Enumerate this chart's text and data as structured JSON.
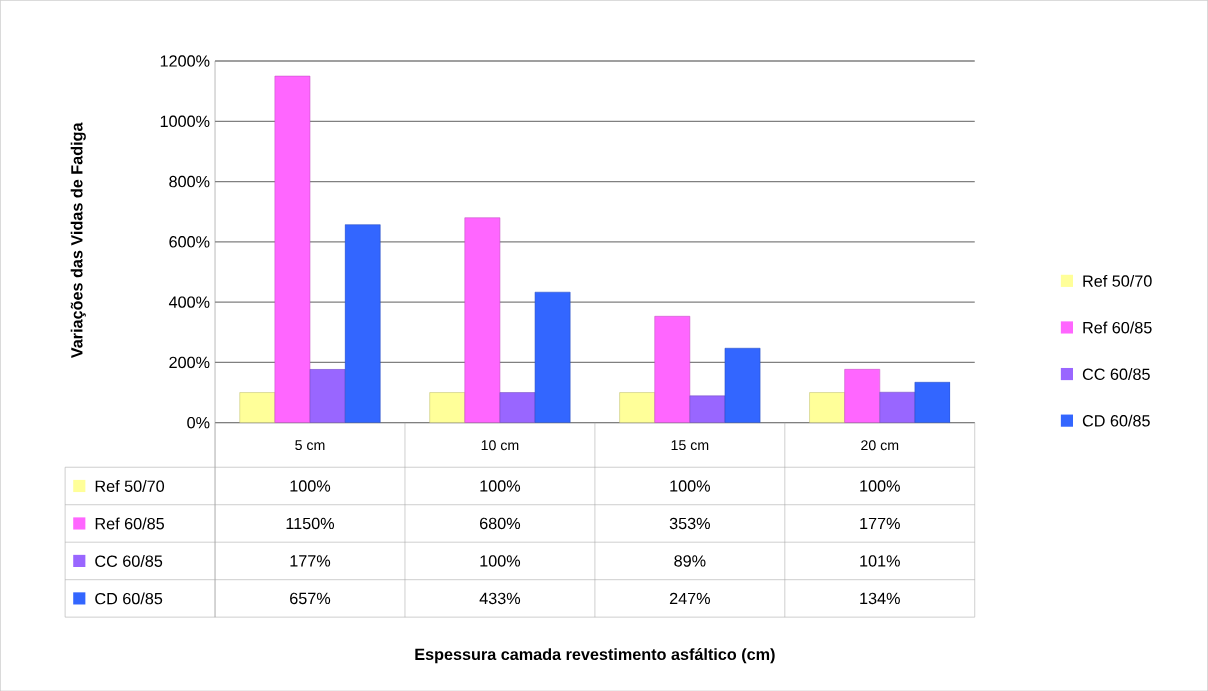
{
  "chart_data": {
    "type": "bar",
    "annotations": [
      "Espessura camada revestimento asfáltico (cm)"
    ],
    "ylabel": "Variações das Vidas de Fadiga",
    "categories": [
      "5 cm",
      "10 cm",
      "15 cm",
      "20 cm"
    ],
    "series": [
      {
        "name": "Ref 50/70",
        "color": "#ffff99",
        "values": [
          100,
          100,
          100,
          100
        ],
        "value_labels": [
          "100%",
          "100%",
          "100%",
          "100%"
        ]
      },
      {
        "name": "Ref 60/85",
        "color": "#ff66ff",
        "values": [
          1150,
          680,
          353,
          177
        ],
        "value_labels": [
          "1150%",
          "680%",
          "353%",
          "177%"
        ]
      },
      {
        "name": "CC 60/85",
        "color": "#9966ff",
        "values": [
          177,
          100,
          89,
          101
        ],
        "value_labels": [
          "177%",
          "100%",
          "89%",
          "101%"
        ]
      },
      {
        "name": "CD 60/85",
        "color": "#3366ff",
        "values": [
          657,
          433,
          247,
          134
        ],
        "value_labels": [
          "657%",
          "433%",
          "247%",
          "134%"
        ]
      }
    ],
    "ylim": [
      0,
      1200
    ],
    "yticks": [
      {
        "value": 0,
        "label": "0%"
      },
      {
        "value": 200,
        "label": "200%"
      },
      {
        "value": 400,
        "label": "400%"
      },
      {
        "value": 600,
        "label": "600%"
      },
      {
        "value": 800,
        "label": "800%"
      },
      {
        "value": 1000,
        "label": "1000%"
      },
      {
        "value": 1200,
        "label": "1200%"
      }
    ],
    "grid": "y",
    "legend": "right"
  }
}
